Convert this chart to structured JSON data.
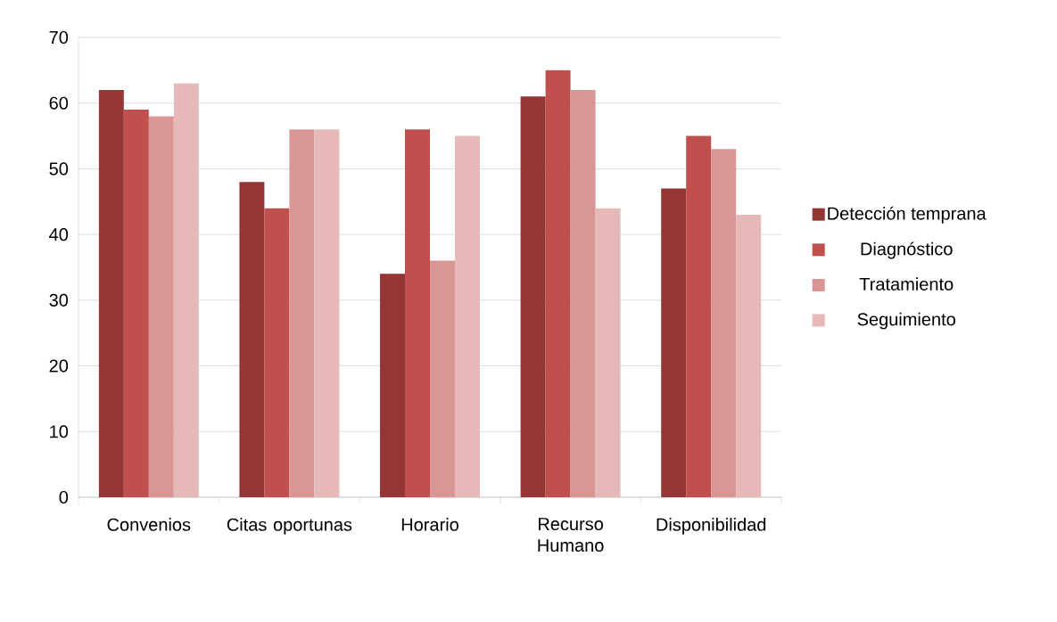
{
  "chart_data": {
    "type": "bar",
    "categories": [
      "Convenios",
      "Citas oportunas",
      "Horario",
      "Recurso Humano",
      "Disponibilidad"
    ],
    "series": [
      {
        "name": "Detección temprana",
        "color": "#943634",
        "values": [
          62,
          48,
          34,
          61,
          47
        ]
      },
      {
        "name": "Diagnóstico",
        "color": "#c0504d",
        "values": [
          59,
          44,
          56,
          65,
          55
        ]
      },
      {
        "name": "Tratamiento",
        "color": "#d99694",
        "values": [
          58,
          56,
          36,
          62,
          53
        ]
      },
      {
        "name": "Seguimiento",
        "color": "#e6b9b8",
        "values": [
          63,
          56,
          55,
          44,
          43
        ]
      }
    ],
    "ylim": [
      0,
      70
    ],
    "yticks": [
      0,
      10,
      20,
      30,
      40,
      50,
      60,
      70
    ],
    "grid": "y",
    "legend": "right"
  }
}
